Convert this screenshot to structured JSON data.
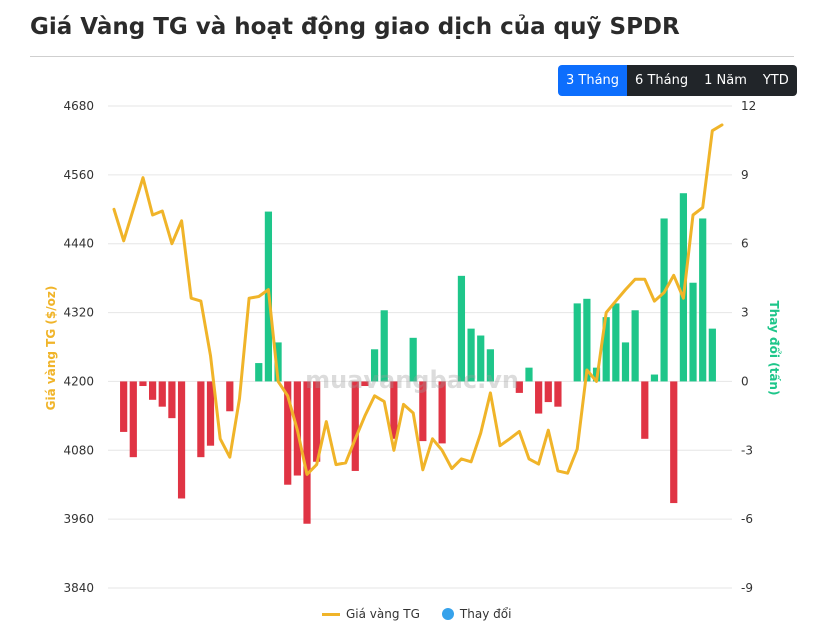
{
  "page": {
    "title": "Giá Vàng TG và hoạt động giao dịch của quỹ SPDR",
    "ranges": [
      "3 Tháng",
      "6 Tháng",
      "1 Năm",
      "YTD"
    ],
    "active_range": "3 Tháng",
    "watermark": "muavangbac.vn"
  },
  "legend": {
    "line_label": "Giá vàng TG",
    "bar_label": "Thay đổi"
  },
  "colors": {
    "line": "#f0b429",
    "positive": "#1ec68a",
    "negative": "#e03444",
    "legend_bar": "#36a2eb"
  },
  "chart_data": {
    "type": "bar",
    "y_left": {
      "label": "Giá vàng TG ($/oz)",
      "min": 3840,
      "max": 4680,
      "ticks": [
        3840,
        3960,
        4080,
        4200,
        4320,
        4440,
        4560,
        4680
      ]
    },
    "y_right": {
      "label": "Thay đổi (tấn)",
      "min": -9,
      "max": 12,
      "ticks": [
        -9,
        -6,
        -3,
        0,
        3,
        6,
        9,
        12
      ]
    },
    "grid": true,
    "legend_position": "bottom",
    "series": [
      {
        "name": "Giá vàng TG",
        "type": "line",
        "axis": "left",
        "values": [
          4500,
          4445,
          4500,
          4555,
          4490,
          4497,
          4440,
          4480,
          4345,
          4340,
          4245,
          4100,
          4068,
          4170,
          4345,
          4348,
          4360,
          4200,
          4175,
          4115,
          4038,
          4055,
          4130,
          4055,
          4058,
          4100,
          4140,
          4175,
          4165,
          4080,
          4160,
          4145,
          4046,
          4100,
          4080,
          4048,
          4065,
          4060,
          4110,
          4180,
          4088,
          4100,
          4113,
          4065,
          4056,
          4115,
          4044,
          4040,
          4082,
          4220,
          4200,
          4320,
          4340,
          4360,
          4378,
          4378,
          4340,
          4355,
          4385,
          4345,
          4490,
          4503,
          4637,
          4647
        ]
      },
      {
        "name": "Thay đổi",
        "type": "bar",
        "axis": "right",
        "values": [
          0,
          -2.2,
          -3.3,
          -0.2,
          -0.8,
          -1.1,
          -1.6,
          -5.1,
          0,
          -3.3,
          -2.8,
          0,
          -1.3,
          0,
          0,
          0.8,
          7.4,
          1.7,
          -4.5,
          -4.1,
          -6.2,
          -3.5,
          0,
          0,
          0,
          -3.9,
          -0.2,
          1.4,
          3.1,
          -2.5,
          0,
          1.9,
          -2.6,
          0,
          -2.7,
          0,
          4.6,
          2.3,
          2,
          1.4,
          0,
          0,
          -0.5,
          0.6,
          -1.4,
          -0.9,
          -1.1,
          0,
          3.4,
          3.6,
          0.6,
          2.8,
          3.4,
          1.7,
          3.1,
          -2.5,
          0.3,
          7.1,
          -5.3,
          8.2,
          4.3,
          7.1,
          2.3,
          0
        ]
      }
    ]
  }
}
